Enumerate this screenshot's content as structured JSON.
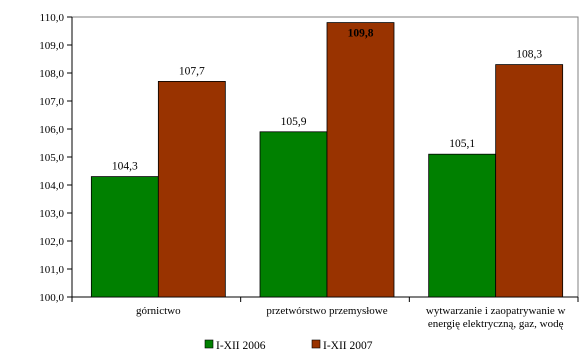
{
  "chart_data": {
    "type": "bar",
    "categories": [
      [
        "górnictwo"
      ],
      [
        "przetwórstwo przemysłowe"
      ],
      [
        "wytwarzanie i zaopatrywanie w",
        "energię elektryczną, gaz, wodę"
      ]
    ],
    "series": [
      {
        "name": "I-XII 2006",
        "color": "#008000",
        "values": [
          104.3,
          105.9,
          105.1
        ],
        "labels": [
          "104,3",
          "105,9",
          "105,1"
        ]
      },
      {
        "name": "I-XII 2007",
        "color": "#993300",
        "values": [
          107.7,
          109.8,
          108.3
        ],
        "labels": [
          "107,7",
          "109,8",
          "108,3"
        ],
        "bold_label_index": 1
      }
    ],
    "ylim": [
      100.0,
      110.0
    ],
    "yticks": [
      "100,0",
      "101,0",
      "102,0",
      "103,0",
      "104,0",
      "105,0",
      "106,0",
      "107,0",
      "108,0",
      "109,0",
      "110,0"
    ],
    "grid": false,
    "legend": "bottom",
    "title": "",
    "xlabel": "",
    "ylabel": ""
  }
}
